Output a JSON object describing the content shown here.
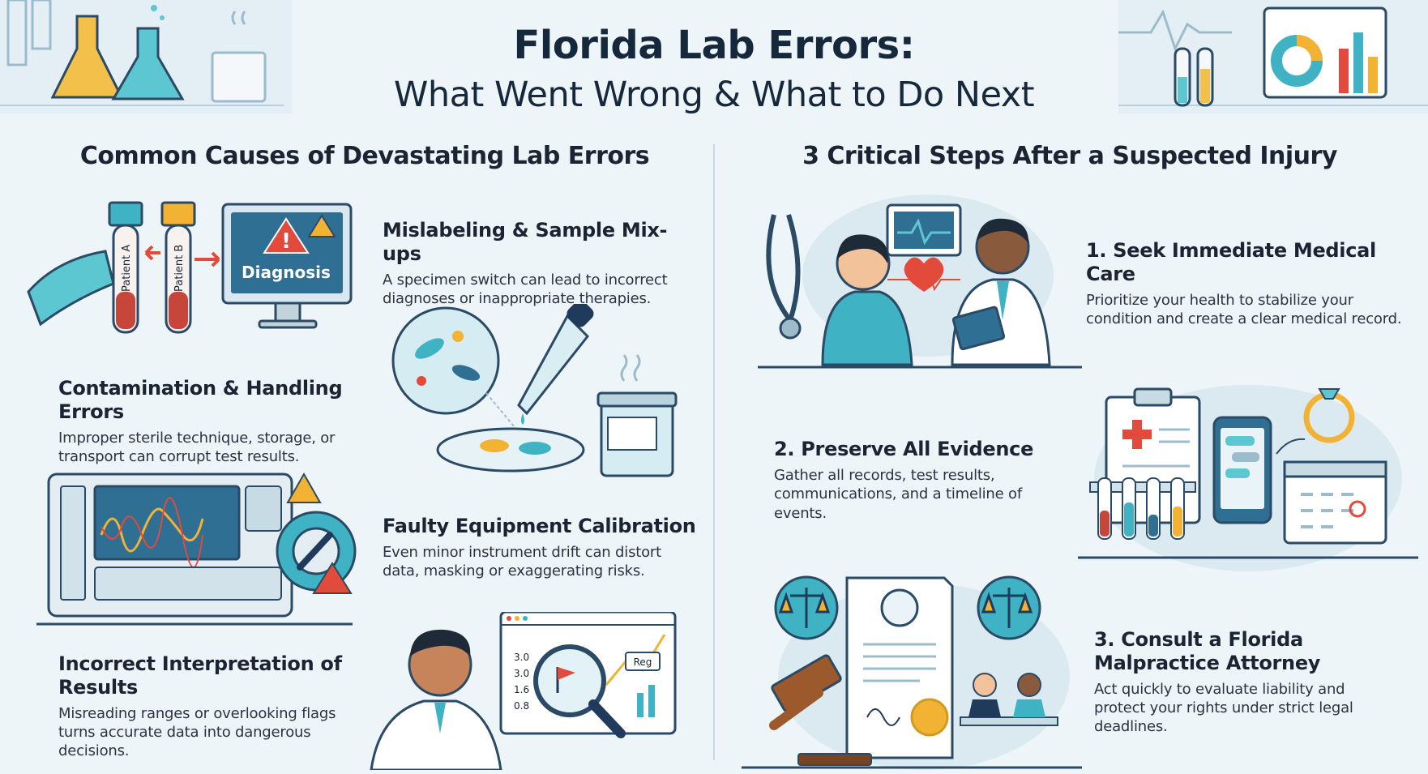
{
  "header": {
    "title": "Florida Lab Errors:",
    "subtitle": "What Went Wrong & What to Do Next"
  },
  "causes": {
    "heading": "Common Causes of Devastating Lab Errors",
    "items": [
      {
        "title": "Mislabeling & Sample Mix-ups",
        "desc": "A specimen switch can lead to incorrect diagnoses or inappropriate therapies."
      },
      {
        "title": "Contamination & Handling Errors",
        "desc": "Improper sterile technique, storage, or transport can corrupt test results."
      },
      {
        "title": "Faulty Equipment Calibration",
        "desc": "Even minor instrument drift can distort data, masking or exaggerating risks."
      },
      {
        "title": "Incorrect Interpretation of Results",
        "desc": "Misreading ranges or overlooking flags turns accurate data into dangerous decisions."
      }
    ]
  },
  "steps": {
    "heading": "3 Critical Steps After a Suspected Injury",
    "items": [
      {
        "title": "1. Seek Immediate Medical Care",
        "desc": "Prioritize your health to stabilize your condition and create a clear medical record."
      },
      {
        "title": "2. Preserve All Evidence",
        "desc": "Gather all records, test results, communications, and a timeline of events."
      },
      {
        "title": "3. Consult a Florida Malpractice Attorney",
        "desc": "Act quickly to evaluate liability and protect your rights under strict legal deadlines."
      }
    ]
  },
  "illustrations": {
    "tube_a_label": "Patient A",
    "tube_b_label": "Patient B",
    "monitor_label": "Diagnosis",
    "report_values": [
      "3.0",
      "3.0",
      "1.6",
      "0.8"
    ],
    "report_tag": "Reg"
  },
  "colors": {
    "teal": "#3fb3c4",
    "navy": "#1f3a5a",
    "red": "#e24a3b",
    "amber": "#f2b233",
    "background": "#eef5f8"
  }
}
